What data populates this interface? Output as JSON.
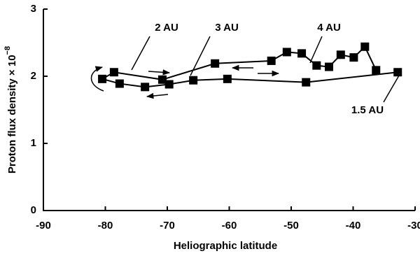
{
  "chart_data": {
    "type": "line",
    "xlabel": "Heliographic latitude",
    "ylabel": "Proton flux density × 10",
    "ylabel_exponent": "−8",
    "x": [
      -32.8,
      -47.6,
      -60.3,
      -65.8,
      -69.7,
      -73.6,
      -77.7,
      -80.5,
      -78.6,
      -70.8,
      -62.3,
      -53.2,
      -50.7,
      -48.3,
      -45.9,
      -43.9,
      -42.0,
      -39.9,
      -38.1,
      -36.3
    ],
    "series": [
      {
        "color": "#000000",
        "values": [
          2.06,
          1.91,
          1.96,
          1.94,
          1.88,
          1.84,
          1.89,
          1.96,
          2.06,
          1.95,
          2.19,
          2.23,
          2.36,
          2.34,
          2.16,
          2.14,
          2.32,
          2.28,
          2.44,
          2.09
        ]
      }
    ],
    "annotations": [
      "2 AU",
      "3 AU",
      "4 AU",
      "1.5 AU"
    ],
    "xlim": [
      -90,
      -30
    ],
    "xticks": [
      -90,
      -80,
      -70,
      -60,
      -50,
      -40,
      -30
    ],
    "ylim": [
      0,
      3
    ],
    "yticks": [
      0,
      1,
      2,
      3
    ],
    "grid": false
  }
}
